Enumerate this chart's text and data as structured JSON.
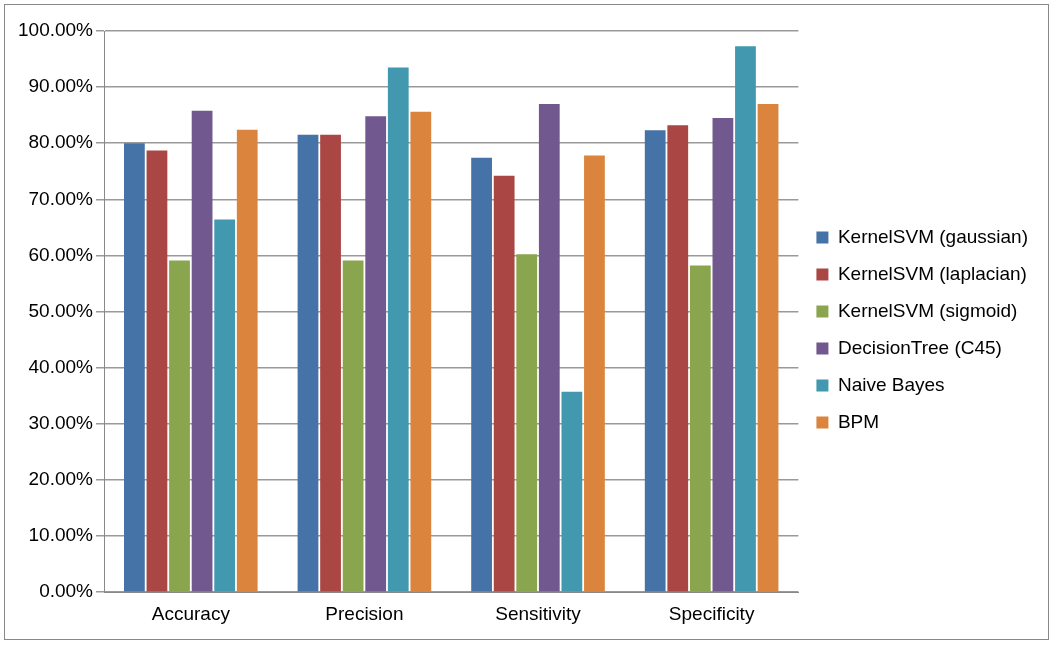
{
  "chart_data": {
    "type": "bar",
    "categories": [
      "Accuracy",
      "Precision",
      "Sensitivity",
      "Specificity"
    ],
    "series": [
      {
        "name": "KernelSVM (gaussian)",
        "color": "#4572a7",
        "values": [
          80.0,
          81.5,
          77.4,
          82.3
        ]
      },
      {
        "name": "KernelSVM (laplacian)",
        "color": "#aa4643",
        "values": [
          78.7,
          81.5,
          74.2,
          83.2
        ]
      },
      {
        "name": "KernelSVM (sigmoid)",
        "color": "#89a54e",
        "values": [
          59.1,
          59.1,
          60.2,
          58.2
        ]
      },
      {
        "name": "DecisionTree (C45)",
        "color": "#71588f",
        "values": [
          85.8,
          84.8,
          87.0,
          84.5
        ]
      },
      {
        "name": "Naive Bayes",
        "color": "#4198af",
        "values": [
          66.4,
          93.5,
          35.7,
          97.3
        ]
      },
      {
        "name": "BPM",
        "color": "#db843d",
        "values": [
          82.4,
          85.6,
          77.8,
          87.0
        ]
      }
    ],
    "ylim": [
      0,
      100
    ],
    "yticks": [
      {
        "value": 0,
        "label": "0.00%"
      },
      {
        "value": 10,
        "label": "10.00%"
      },
      {
        "value": 20,
        "label": "20.00%"
      },
      {
        "value": 30,
        "label": "30.00%"
      },
      {
        "value": 40,
        "label": "40.00%"
      },
      {
        "value": 50,
        "label": "50.00%"
      },
      {
        "value": 60,
        "label": "60.00%"
      },
      {
        "value": 70,
        "label": "70.00%"
      },
      {
        "value": 80,
        "label": "80.00%"
      },
      {
        "value": 90,
        "label": "90.00%"
      },
      {
        "value": 100,
        "label": "100.00%"
      }
    ],
    "grid": "y",
    "legend": "right"
  }
}
